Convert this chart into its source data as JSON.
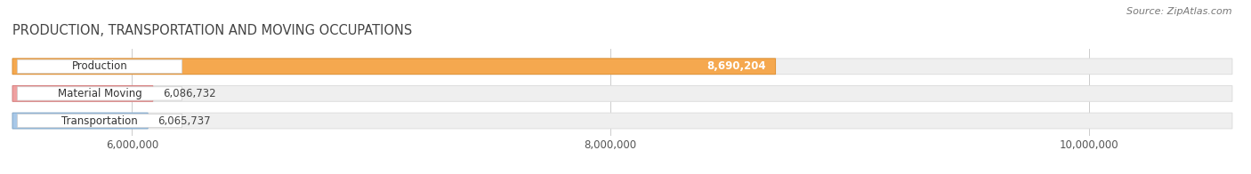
{
  "title": "PRODUCTION, TRANSPORTATION AND MOVING OCCUPATIONS",
  "source": "Source: ZipAtlas.com",
  "categories": [
    "Production",
    "Material Moving",
    "Transportation"
  ],
  "values": [
    8690204,
    6086732,
    6065737
  ],
  "bar_colors": [
    "#F5A84F",
    "#EFA0A0",
    "#A8C8E8"
  ],
  "bar_edge_colors": [
    "#E09030",
    "#D88080",
    "#80A8CC"
  ],
  "value_inside": [
    true,
    false,
    false
  ],
  "xlim_min": 5500000,
  "xlim_max": 10600000,
  "xticks": [
    6000000,
    8000000,
    10000000
  ],
  "xtick_labels": [
    "6,000,000",
    "8,000,000",
    "10,000,000"
  ],
  "background_color": "#FFFFFF",
  "bar_background_color": "#EFEFEF",
  "bar_background_edge": "#DDDDDD",
  "title_fontsize": 10.5,
  "label_fontsize": 8.5,
  "value_fontsize": 8.5,
  "source_fontsize": 8,
  "title_color": "#444444",
  "source_color": "#777777"
}
